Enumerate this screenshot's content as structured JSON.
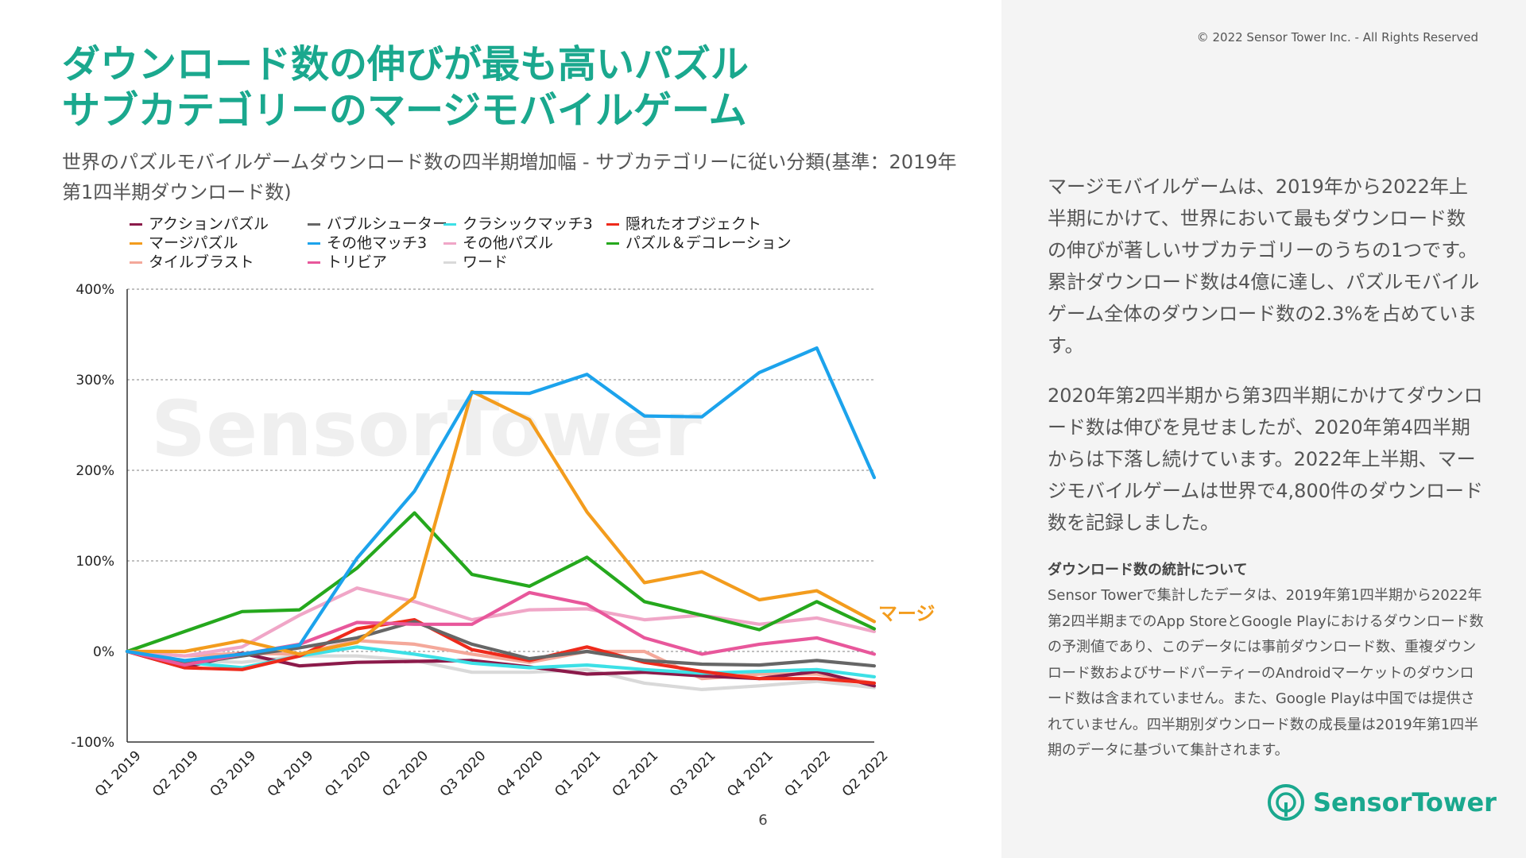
{
  "header": {
    "title_line1": "ダウンロード数の伸びが最も高いパズル",
    "title_line2": "サブカテゴリーのマージモバイルゲーム",
    "subtitle": "世界のパズルモバイルゲームダウンロード数の四半期増加幅 - サブカテゴリーに従い分類(基準：2019年第1四半期ダウンロード数)"
  },
  "copyright": "© 2022 Sensor Tower Inc. - All Rights Reserved",
  "page_number": "6",
  "watermark": "SensorTower",
  "logo": {
    "text": "SensorTower",
    "color": "#1aa88e"
  },
  "sidebar": {
    "paragraph1": "マージモバイルゲームは、2019年から2022年上半期にかけて、世界において最もダウンロード数の伸びが著しいサブカテゴリーのうちの1つです。累計ダウンロード数は4億に達し、パズルモバイルゲーム全体のダウンロード数の2.3%を占めています。",
    "paragraph2": "2020年第2四半期から第3四半期にかけてダウンロード数は伸びを見せましたが、2020年第4四半期からは下落し続けています。2022年上半期、マージモバイルゲームは世界で4,800件のダウンロード数を記録しました。",
    "note_title": "ダウンロード数の統計について",
    "note_body": "Sensor Towerで集計したデータは、2019年第1四半期から2022年第2四半期までのApp StoreとGoogle Playにおけるダウンロード数の予測値であり、このデータには事前ダウンロード数、重複ダウンロード数およびサードパーティーのAndroidマーケットのダウンロード数は含まれていません。また、Google Playは中国では提供されていません。四半期別ダウンロード数の成長量は2019年第1四半期のデータに基づいて集計されます。"
  },
  "chart_data": {
    "type": "line",
    "x": [
      "Q1 2019",
      "Q2 2019",
      "Q3 2019",
      "Q4 2019",
      "Q1 2020",
      "Q2 2020",
      "Q3 2020",
      "Q4 2020",
      "Q1 2021",
      "Q2 2021",
      "Q3 2021",
      "Q4 2021",
      "Q1 2022",
      "Q2 2022"
    ],
    "ylim": [
      -100,
      400
    ],
    "yticks": [
      -100,
      0,
      100,
      200,
      300,
      400
    ],
    "ytick_labels": [
      "-100%",
      "0%",
      "100%",
      "200%",
      "300%",
      "400%"
    ],
    "grid": true,
    "annotation": {
      "text": "マージ",
      "series": "マージパズル",
      "color": "#f39c1d"
    },
    "series": [
      {
        "name": "アクションパズル",
        "color": "#8b1a4a",
        "values": [
          0,
          -18,
          -2,
          -16,
          -12,
          -11,
          -10,
          -17,
          -25,
          -23,
          -27,
          -30,
          -22,
          -38
        ]
      },
      {
        "name": "バブルシューター",
        "color": "#666666",
        "values": [
          0,
          -14,
          -5,
          4,
          15,
          33,
          8,
          -8,
          0,
          -10,
          -14,
          -15,
          -10,
          -16
        ]
      },
      {
        "name": "クラシックマッチ3",
        "color": "#3de0e6",
        "values": [
          0,
          -12,
          -18,
          -5,
          5,
          -3,
          -13,
          -18,
          -15,
          -20,
          -24,
          -22,
          -20,
          -28
        ]
      },
      {
        "name": "隠れたオブジェクト",
        "color": "#ee2a1b",
        "values": [
          0,
          -18,
          -20,
          -5,
          25,
          35,
          2,
          -10,
          5,
          -12,
          -22,
          -30,
          -30,
          -35
        ]
      },
      {
        "name": "マージパズル",
        "color": "#f39c1d",
        "values": [
          0,
          0,
          12,
          -3,
          10,
          60,
          287,
          256,
          154,
          76,
          88,
          57,
          67,
          33
        ]
      },
      {
        "name": "その他マッチ3",
        "color": "#1ca3ec",
        "values": [
          0,
          -10,
          -3,
          7,
          103,
          177,
          286,
          285,
          306,
          260,
          259,
          308,
          335,
          192
        ]
      },
      {
        "name": "その他パズル",
        "color": "#f0a6c7",
        "values": [
          0,
          -5,
          5,
          40,
          70,
          55,
          35,
          46,
          47,
          35,
          40,
          30,
          37,
          22
        ]
      },
      {
        "name": "パズル＆デコレーション",
        "color": "#25a81d",
        "values": [
          0,
          22,
          44,
          46,
          92,
          153,
          85,
          72,
          104,
          55,
          40,
          24,
          55,
          25
        ]
      },
      {
        "name": "タイルブラスト",
        "color": "#f4a89a",
        "values": [
          0,
          -5,
          -2,
          -3,
          12,
          8,
          -3,
          -12,
          0,
          0,
          -30,
          -25,
          -25,
          -35
        ]
      },
      {
        "name": "トリビア",
        "color": "#e8579b",
        "values": [
          0,
          -15,
          -3,
          8,
          32,
          30,
          30,
          65,
          52,
          15,
          -3,
          8,
          15,
          -3
        ]
      },
      {
        "name": "ワード",
        "color": "#d9d9d9",
        "values": [
          0,
          -10,
          -12,
          -5,
          -5,
          -10,
          -23,
          -23,
          -20,
          -35,
          -42,
          -38,
          -33,
          -40
        ]
      }
    ]
  }
}
